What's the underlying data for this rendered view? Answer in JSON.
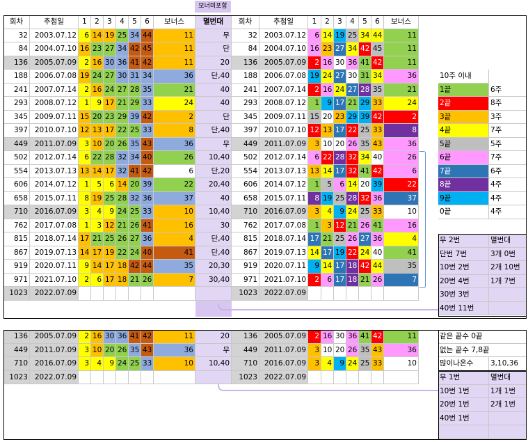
{
  "colors": {
    "1": "#92d050",
    "2": "#ff0000",
    "3": "#ffc000",
    "4": "#ffff00",
    "5": "#bfbfbf",
    "6": "#ff99ff",
    "7": "#2e75b6",
    "8": "#7030a0",
    "9": "#00b0f0",
    "0": "#ffffff",
    "left_bonus": {
      "11": "#ffc000",
      "36": "#8faadc",
      "21": "#92d050",
      "24": "#ffff00",
      "2": "#ffc000",
      "8": "#ffc000",
      "26": "#92d050",
      "22": "#92d050",
      "37": "#8faadc",
      "10": "#ffc000",
      "16": "#ffc000",
      "4": "#ffc000",
      "41": "#c55a11",
      "35": "#8faadc",
      "7": "#ffc000"
    }
  },
  "header": {
    "round": "회차",
    "date": "추첨일",
    "n1": "1",
    "n2": "2",
    "n3": "3",
    "n4": "4",
    "n5": "5",
    "n6": "6",
    "bonus": "보너스",
    "note": "멸번대",
    "bonus_included": "보너미포함"
  },
  "top_rows": [
    {
      "round": "32",
      "date": "2003.07.12",
      "nums": [
        "6",
        "14",
        "19",
        "25",
        "34",
        "44"
      ],
      "bonus": "11",
      "note": "무",
      "grey": false
    },
    {
      "round": "84",
      "date": "2004.07.10",
      "nums": [
        "16",
        "23",
        "27",
        "34",
        "42",
        "45"
      ],
      "bonus": "11",
      "note": "단",
      "grey": false
    },
    {
      "round": "136",
      "date": "2005.07.09",
      "nums": [
        "2",
        "16",
        "30",
        "36",
        "41",
        "42"
      ],
      "bonus": "11",
      "note": "20",
      "grey": true
    },
    {
      "round": "188",
      "date": "2006.07.08",
      "nums": [
        "19",
        "24",
        "27",
        "30",
        "31",
        "34"
      ],
      "bonus": "36",
      "note": "단,40",
      "grey": false
    },
    {
      "round": "241",
      "date": "2007.07.14",
      "nums": [
        "2",
        "16",
        "24",
        "27",
        "28",
        "35"
      ],
      "bonus": "21",
      "note": "40",
      "grey": false
    },
    {
      "round": "293",
      "date": "2008.07.12",
      "nums": [
        "1",
        "9",
        "17",
        "21",
        "29",
        "33"
      ],
      "bonus": "24",
      "note": "40",
      "grey": false
    },
    {
      "round": "345",
      "date": "2009.07.11",
      "nums": [
        "15",
        "20",
        "23",
        "29",
        "39",
        "42"
      ],
      "bonus": "2",
      "note": "단",
      "grey": false
    },
    {
      "round": "397",
      "date": "2010.07.10",
      "nums": [
        "12",
        "13",
        "17",
        "22",
        "25",
        "33"
      ],
      "bonus": "8",
      "note": "단,40",
      "grey": false
    },
    {
      "round": "449",
      "date": "2011.07.09",
      "nums": [
        "3",
        "10",
        "20",
        "26",
        "35",
        "43"
      ],
      "bonus": "36",
      "note": "무",
      "grey": true
    },
    {
      "round": "502",
      "date": "2012.07.14",
      "nums": [
        "6",
        "22",
        "28",
        "32",
        "34",
        "40"
      ],
      "bonus": "26",
      "note": "10,40",
      "grey": false
    },
    {
      "round": "554",
      "date": "2013.07.13",
      "nums": [
        "13",
        "14",
        "17",
        "32",
        "41",
        "42"
      ],
      "bonus": "6",
      "note": "단,20",
      "grey": false
    },
    {
      "round": "606",
      "date": "2014.07.12",
      "nums": [
        "1",
        "5",
        "6",
        "14",
        "20",
        "39"
      ],
      "bonus": "22",
      "note": "20,40",
      "grey": false
    },
    {
      "round": "658",
      "date": "2015.07.11",
      "nums": [
        "8",
        "19",
        "25",
        "28",
        "32",
        "36"
      ],
      "bonus": "37",
      "note": "40",
      "grey": false
    },
    {
      "round": "710",
      "date": "2016.07.09",
      "nums": [
        "3",
        "4",
        "9",
        "24",
        "25",
        "33"
      ],
      "bonus": "10",
      "note": "10,40",
      "grey": true
    },
    {
      "round": "762",
      "date": "2017.07.08",
      "nums": [
        "1",
        "3",
        "12",
        "21",
        "26",
        "41"
      ],
      "bonus": "16",
      "note": "30",
      "grey": false
    },
    {
      "round": "815",
      "date": "2018.07.14",
      "nums": [
        "17",
        "21",
        "25",
        "26",
        "27",
        "36"
      ],
      "bonus": "4",
      "note": "단,40",
      "grey": false
    },
    {
      "round": "867",
      "date": "2019.07.13",
      "nums": [
        "14",
        "17",
        "19",
        "22",
        "24",
        "40"
      ],
      "bonus": "41",
      "note": "단,40",
      "grey": false
    },
    {
      "round": "919",
      "date": "2020.07.11",
      "nums": [
        "9",
        "14",
        "17",
        "18",
        "42",
        "44"
      ],
      "bonus": "35",
      "note": "20,30",
      "grey": false
    },
    {
      "round": "971",
      "date": "2021.07.10",
      "nums": [
        "2",
        "6",
        "17",
        "18",
        "21",
        "26"
      ],
      "bonus": "7",
      "note": "30,40",
      "grey": false
    },
    {
      "round": "1023",
      "date": "2022.07.09",
      "nums": [
        "",
        "",
        "",
        "",
        "",
        ""
      ],
      "bonus": "",
      "note": "",
      "grey": true
    }
  ],
  "bottom_rows": [
    {
      "round": "136",
      "date": "2005.07.09",
      "nums": [
        "2",
        "16",
        "30",
        "36",
        "41",
        "42"
      ],
      "bonus": "11",
      "note": "20",
      "grey": true
    },
    {
      "round": "449",
      "date": "2011.07.09",
      "nums": [
        "3",
        "10",
        "20",
        "26",
        "35",
        "43"
      ],
      "bonus": "36",
      "note": "무",
      "grey": true
    },
    {
      "round": "710",
      "date": "2016.07.09",
      "nums": [
        "3",
        "4",
        "9",
        "24",
        "25",
        "33"
      ],
      "bonus": "10",
      "note": "10,40",
      "grey": true
    },
    {
      "round": "1023",
      "date": "2022.07.09",
      "nums": [
        "",
        "",
        "",
        "",
        "",
        ""
      ],
      "bonus": "",
      "note": "",
      "grey": true
    }
  ],
  "legend": {
    "title": "10주 이내",
    "items": [
      {
        "label": "1끝",
        "weeks": "6주",
        "digit": "1"
      },
      {
        "label": "2끝",
        "weeks": "8주",
        "digit": "2"
      },
      {
        "label": "3끝",
        "weeks": "3주",
        "digit": "3"
      },
      {
        "label": "4끝",
        "weeks": "7주",
        "digit": "4"
      },
      {
        "label": "5끝",
        "weeks": "5주",
        "digit": "5"
      },
      {
        "label": "6끝",
        "weeks": "7주",
        "digit": "6"
      },
      {
        "label": "7끝",
        "weeks": "6주",
        "digit": "7"
      },
      {
        "label": "8끝",
        "weeks": "4주",
        "digit": "8"
      },
      {
        "label": "9끝",
        "weeks": "4주",
        "digit": "9"
      },
      {
        "label": "0끝",
        "weeks": "4주",
        "digit": "0"
      }
    ]
  },
  "summary_top": {
    "rows": [
      [
        "무 2번",
        "멸번대"
      ],
      [
        "단번 7번",
        "3개 0번"
      ],
      [
        "10번 2번",
        "2개 10번"
      ],
      [
        "20번 4번",
        "1개 7번"
      ],
      [
        "30번 3번",
        ""
      ],
      [
        "40번 11번",
        ""
      ]
    ]
  },
  "notes_bottom": {
    "same_ending": "같은 끝수 0끝",
    "missing_ending": "없는 끝수 7,8끝",
    "frequent_label": "많이나온수",
    "frequent_value": "3,10,36"
  },
  "summary_bottom": {
    "rows": [
      [
        "무 1번",
        "멸번대"
      ],
      [
        "10번 1번",
        "1개 1번"
      ],
      [
        "20번 1번",
        "2개 1번"
      ],
      [
        "40번 1번",
        ""
      ],
      [
        "",
        ""
      ]
    ]
  }
}
